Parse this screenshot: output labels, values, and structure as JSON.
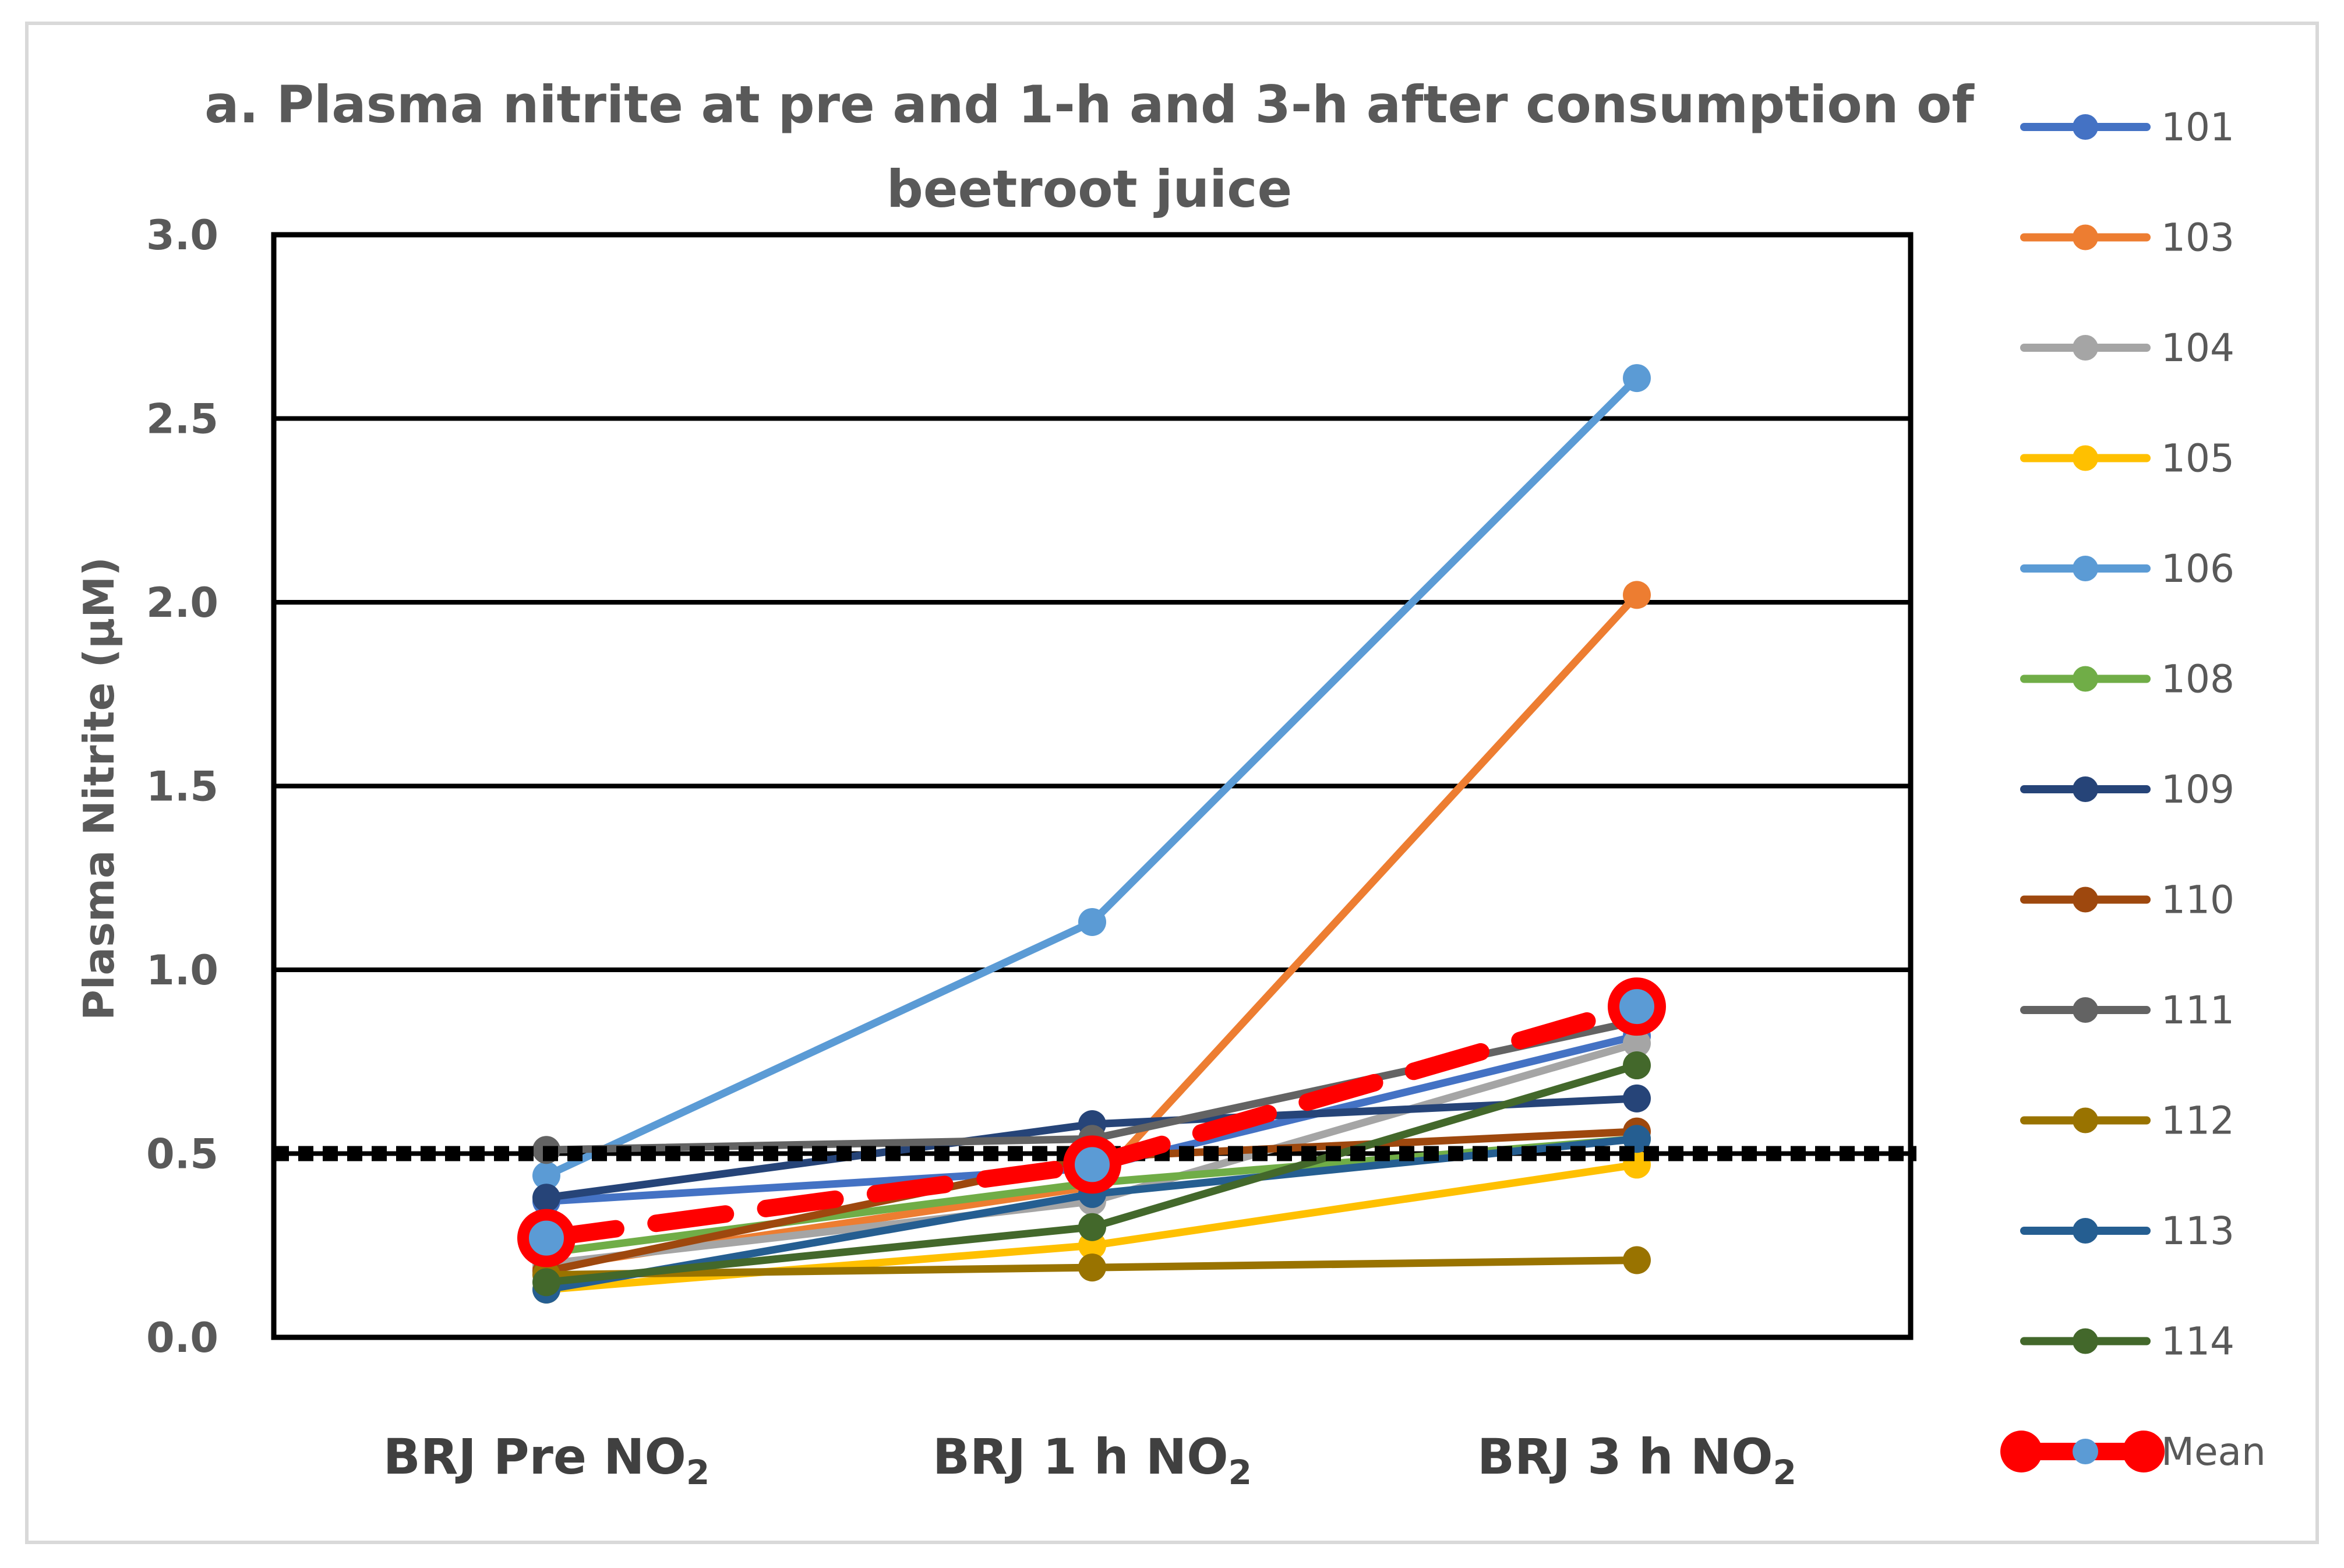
{
  "chart_data": {
    "type": "line",
    "title_line1": "a. Plasma nitrite at pre and 1-h and 3-h after consumption of",
    "title_line2": "beetroot juice",
    "ylabel": "Plasma Nitrite (µM)",
    "ylim": [
      0,
      3
    ],
    "yticks": [
      "0.0",
      "0.5",
      "1.0",
      "1.5",
      "2.0",
      "2.5",
      "3.0"
    ],
    "ytick_values": [
      0,
      0.5,
      1.0,
      1.5,
      2.0,
      2.5,
      3.0
    ],
    "categories": [
      {
        "base": "BRJ Pre NO",
        "sub": "2"
      },
      {
        "base": "BRJ 1 h NO",
        "sub": "2"
      },
      {
        "base": "BRJ 3 h NO",
        "sub": "2"
      }
    ],
    "reference_line": 0.5,
    "grid": true,
    "legend_position": "right",
    "series": [
      {
        "name": "101",
        "color": "#4472C4",
        "values": [
          0.37,
          0.46,
          0.82
        ]
      },
      {
        "name": "103",
        "color": "#ED7D31",
        "values": [
          0.19,
          0.41,
          2.02
        ]
      },
      {
        "name": "104",
        "color": "#A5A5A5",
        "values": [
          0.2,
          0.37,
          0.8
        ]
      },
      {
        "name": "105",
        "color": "#FFC000",
        "values": [
          0.13,
          0.25,
          0.47
        ]
      },
      {
        "name": "106",
        "color": "#5B9BD5",
        "values": [
          0.44,
          1.13,
          2.61
        ]
      },
      {
        "name": "108",
        "color": "#70AD47",
        "values": [
          0.23,
          0.42,
          0.54
        ]
      },
      {
        "name": "109",
        "color": "#264478",
        "values": [
          0.38,
          0.58,
          0.65
        ]
      },
      {
        "name": "110",
        "color": "#9E480E",
        "values": [
          0.18,
          0.49,
          0.56
        ]
      },
      {
        "name": "111",
        "color": "#636363",
        "values": [
          0.51,
          0.54,
          0.86
        ]
      },
      {
        "name": "112",
        "color": "#997300",
        "values": [
          0.17,
          0.19,
          0.21
        ]
      },
      {
        "name": "113",
        "color": "#255E91",
        "values": [
          0.13,
          0.39,
          0.54
        ]
      },
      {
        "name": "114",
        "color": "#43682B",
        "values": [
          0.15,
          0.3,
          0.74
        ]
      }
    ],
    "mean": {
      "name": "Mean",
      "color": "#FF0000",
      "marker_color": "#5B9BD5",
      "values": [
        0.27,
        0.47,
        0.9
      ]
    }
  }
}
